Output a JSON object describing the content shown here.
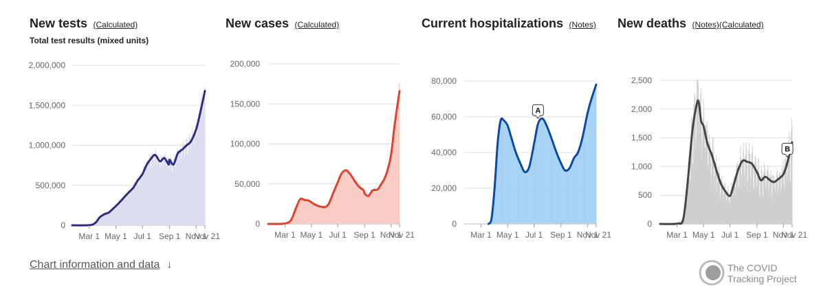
{
  "panels": [
    {
      "title": "New tests",
      "links": [
        "(Calculated)"
      ],
      "subtitle": "Total test results (mixed units)"
    },
    {
      "title": "New cases",
      "links": [
        "(Calculated)"
      ],
      "subtitle": ""
    },
    {
      "title": "Current hospitalizations",
      "links": [
        "(Notes)"
      ],
      "subtitle": ""
    },
    {
      "title": "New deaths",
      "links": [
        "(Notes)",
        "(Calculated)"
      ],
      "subtitle": ""
    }
  ],
  "footer": {
    "link_label": "Chart information and data",
    "arrow": "↓"
  },
  "logo": {
    "line1": "The COVID",
    "line2": "Tracking Project"
  },
  "colors": {
    "tests": "#2e2c7e",
    "tests_fill": "#dcdcef",
    "cases": "#e1422d",
    "cases_fill": "#f9ccc4",
    "hosp": "#0b4aa2",
    "hosp_fill": "#a8d3f3",
    "deaths": "#444444",
    "deaths_fill": "#cfcfcf",
    "grid": "#dddddd"
  },
  "chart_data": [
    {
      "type": "area",
      "title": "New tests",
      "subtitle": "Total test results (mixed units)",
      "x_ticks": [
        "Mar 1",
        "May 1",
        "Jul 1",
        "Sep 1",
        "Nov 1",
        "Nov 21"
      ],
      "y_ticks": [
        "0",
        "500,000",
        "1,000,000",
        "1,500,000",
        "2,000,000"
      ],
      "ylim": [
        0,
        2000000
      ],
      "x": [
        "Jan 22",
        "Mar 1",
        "Mar 15",
        "Mar 25",
        "Apr 5",
        "Apr 15",
        "Apr 25",
        "May 1",
        "May 10",
        "May 20",
        "Jun 1",
        "Jun 10",
        "Jun 20",
        "Jul 1",
        "Jul 10",
        "Jul 20",
        "Jul 30",
        "Aug 10",
        "Aug 20",
        "Aug 30",
        "Sep 1",
        "Sep 10",
        "Sep 20",
        "Oct 1",
        "Oct 10",
        "Oct 20",
        "Nov 1",
        "Nov 10",
        "Nov 21"
      ],
      "series": [
        {
          "values": [
            0,
            2000,
            30000,
            100000,
            140000,
            160000,
            210000,
            240000,
            290000,
            350000,
            420000,
            470000,
            560000,
            640000,
            750000,
            830000,
            880000,
            800000,
            840000,
            760000,
            820000,
            760000,
            900000,
            950000,
            1000000,
            1050000,
            1200000,
            1400000,
            1680000
          ]
        }
      ],
      "grid": true
    },
    {
      "type": "area",
      "title": "New cases",
      "x_ticks": [
        "Mar 1",
        "May 1",
        "Jul 1",
        "Sep 1",
        "Nov 1",
        "Nov 21"
      ],
      "y_ticks": [
        "0",
        "50,000",
        "100,000",
        "150,000",
        "200,000"
      ],
      "ylim": [
        0,
        200000
      ],
      "x": [
        "Jan 22",
        "Mar 1",
        "Mar 15",
        "Mar 25",
        "Apr 5",
        "Apr 15",
        "Apr 25",
        "May 1",
        "May 10",
        "May 20",
        "Jun 1",
        "Jun 10",
        "Jun 20",
        "Jul 1",
        "Jul 10",
        "Jul 20",
        "Jul 30",
        "Aug 10",
        "Aug 20",
        "Aug 30",
        "Sep 1",
        "Sep 10",
        "Sep 20",
        "Oct 1",
        "Oct 10",
        "Oct 20",
        "Nov 1",
        "Nov 10",
        "Nov 21"
      ],
      "series": [
        {
          "values": [
            0,
            500,
            5000,
            18000,
            31000,
            30000,
            29000,
            27000,
            24000,
            22000,
            21000,
            25000,
            38000,
            52000,
            63000,
            67000,
            62000,
            53000,
            46000,
            42000,
            38000,
            35000,
            42000,
            43000,
            50000,
            60000,
            85000,
            125000,
            166000
          ]
        }
      ],
      "grid": true
    },
    {
      "type": "area",
      "title": "Current hospitalizations",
      "x_ticks": [
        "Mar 1",
        "May 1",
        "Jul 1",
        "Sep 1",
        "Nov 1",
        "Nov 21"
      ],
      "y_ticks": [
        "0",
        "20,000",
        "40,000",
        "60,000",
        "80,000"
      ],
      "ylim": [
        0,
        80000
      ],
      "x": [
        "Mar 18",
        "Mar 25",
        "Apr 1",
        "Apr 8",
        "Apr 15",
        "Apr 22",
        "May 1",
        "May 10",
        "May 20",
        "Jun 1",
        "Jun 10",
        "Jun 20",
        "Jul 1",
        "Jul 10",
        "Jul 20",
        "Jul 30",
        "Aug 10",
        "Aug 20",
        "Sep 1",
        "Sep 10",
        "Sep 20",
        "Oct 1",
        "Oct 10",
        "Oct 20",
        "Nov 1",
        "Nov 10",
        "Nov 21"
      ],
      "series": [
        {
          "values": [
            0,
            3000,
            20000,
            45000,
            58000,
            58000,
            55000,
            48000,
            40000,
            33000,
            29000,
            32000,
            45000,
            56000,
            59000,
            55000,
            48000,
            41000,
            34000,
            30000,
            31000,
            37000,
            40000,
            48000,
            62000,
            70000,
            78000
          ]
        }
      ],
      "annotations": [
        {
          "label": "A",
          "x": "Jul 10"
        }
      ],
      "grid": true
    },
    {
      "type": "area",
      "title": "New deaths",
      "x_ticks": [
        "Mar 1",
        "May 1",
        "Jul 1",
        "Sep 1",
        "Nov 1",
        "Nov 21"
      ],
      "y_ticks": [
        "0",
        "500",
        "1,000",
        "1,500",
        "2,000",
        "2,500"
      ],
      "ylim": [
        0,
        2500
      ],
      "x": [
        "Jan 22",
        "Mar 1",
        "Mar 15",
        "Mar 25",
        "Apr 5",
        "Apr 15",
        "Apr 20",
        "Apr 25",
        "May 1",
        "May 10",
        "May 20",
        "Jun 1",
        "Jun 10",
        "Jun 20",
        "Jul 1",
        "Jul 10",
        "Jul 20",
        "Jul 30",
        "Aug 10",
        "Aug 20",
        "Sep 1",
        "Sep 10",
        "Sep 20",
        "Oct 1",
        "Oct 10",
        "Oct 20",
        "Nov 1",
        "Nov 10",
        "Nov 21"
      ],
      "series": [
        {
          "values": [
            0,
            5,
            80,
            700,
            1600,
            2080,
            2120,
            1800,
            1700,
            1400,
            1200,
            900,
            700,
            570,
            490,
            700,
            950,
            1100,
            1080,
            1050,
            900,
            760,
            820,
            760,
            730,
            780,
            870,
            1070,
            1420
          ]
        }
      ],
      "annotations": [
        {
          "label": "B",
          "x": "Nov 10"
        }
      ],
      "grid": true
    }
  ]
}
